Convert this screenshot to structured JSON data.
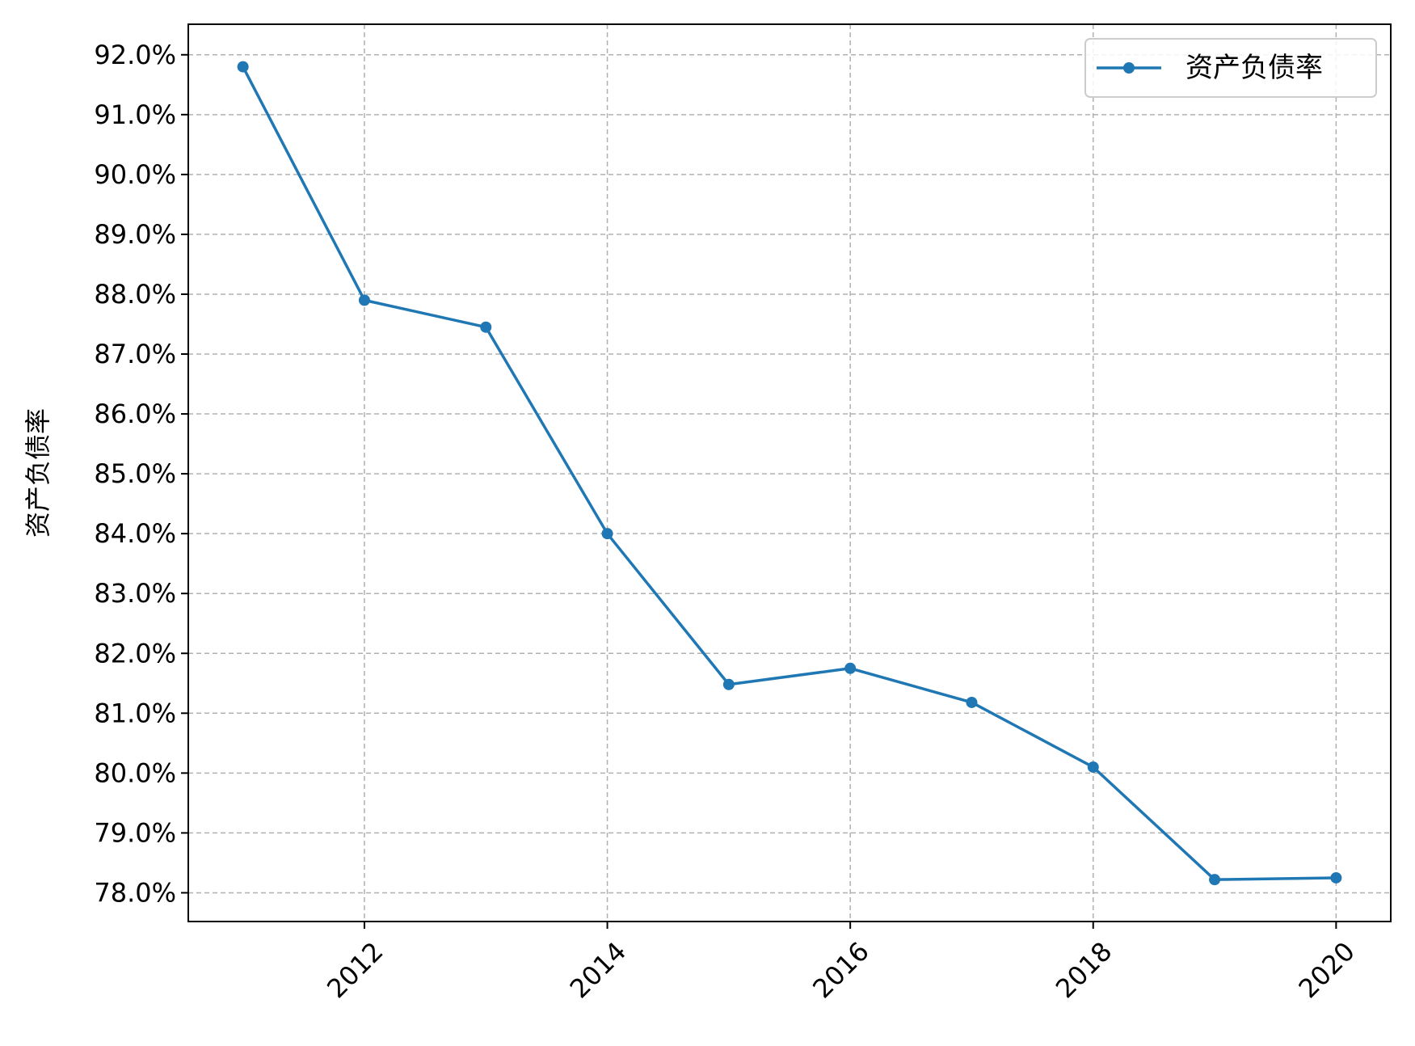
{
  "chart_data": {
    "type": "line",
    "title": "",
    "xlabel": "",
    "ylabel": "资产负债率",
    "x": [
      2011,
      2012,
      2013,
      2014,
      2015,
      2016,
      2017,
      2018,
      2019,
      2020
    ],
    "series": [
      {
        "name": "资产负债率",
        "values": [
          91.8,
          87.9,
          87.45,
          84.0,
          81.48,
          81.75,
          81.18,
          80.1,
          78.22,
          78.25
        ],
        "color": "#1f77b4",
        "marker": "circle"
      }
    ],
    "xticks": [
      2012,
      2014,
      2016,
      2018,
      2020
    ],
    "xtick_labels": [
      "2012",
      "2014",
      "2016",
      "2018",
      "2020"
    ],
    "xtick_rotation_deg": 45,
    "yticks": [
      78,
      79,
      80,
      81,
      82,
      83,
      84,
      85,
      86,
      87,
      88,
      89,
      90,
      91,
      92
    ],
    "ytick_labels": [
      "78.0%",
      "79.0%",
      "80.0%",
      "81.0%",
      "82.0%",
      "83.0%",
      "84.0%",
      "85.0%",
      "86.0%",
      "87.0%",
      "88.0%",
      "89.0%",
      "90.0%",
      "91.0%",
      "92.0%"
    ],
    "xlim": [
      2010.55,
      2020.45
    ],
    "ylim": [
      77.52,
      92.51
    ],
    "grid": true,
    "grid_style": "dashed",
    "grid_color": "#b0b0b0",
    "legend": {
      "position": "top-right",
      "entries": [
        "资产负债率"
      ]
    }
  }
}
